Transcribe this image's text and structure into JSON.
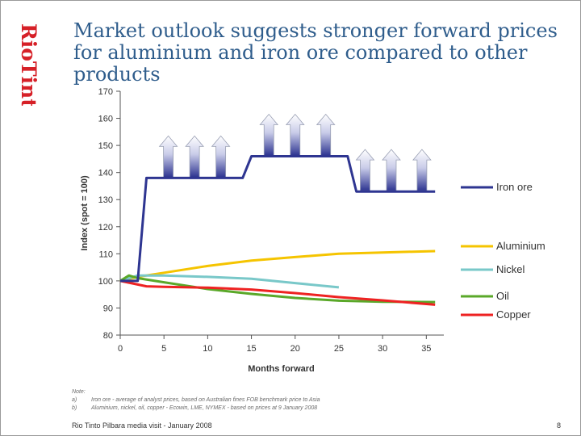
{
  "brand": {
    "logo_text": "RioTinto",
    "color": "#d62027"
  },
  "title": "Market outlook suggests stronger forward prices  for aluminium and iron ore compared to other products",
  "chart_data": {
    "type": "line",
    "xlabel": "Months forward",
    "ylabel": "Index (spot = 100)",
    "xlim": [
      0,
      37
    ],
    "ylim": [
      80,
      170
    ],
    "xticks": [
      0,
      5,
      10,
      15,
      20,
      25,
      30,
      35
    ],
    "yticks": [
      80,
      90,
      100,
      110,
      120,
      130,
      140,
      150,
      160,
      170
    ],
    "series": [
      {
        "name": "Iron ore",
        "color": "#2e3591",
        "points": [
          [
            0,
            100
          ],
          [
            2,
            100
          ],
          [
            3,
            138
          ],
          [
            7,
            138
          ],
          [
            14,
            138
          ],
          [
            15,
            146
          ],
          [
            21,
            146
          ],
          [
            26,
            146
          ],
          [
            27,
            133
          ],
          [
            36,
            133
          ]
        ]
      },
      {
        "name": "Aluminium",
        "color": "#f5c400",
        "points": [
          [
            0,
            100
          ],
          [
            2,
            101.5
          ],
          [
            5,
            103
          ],
          [
            10,
            105.5
          ],
          [
            15,
            107.5
          ],
          [
            20,
            108.8
          ],
          [
            25,
            110
          ],
          [
            30,
            110.5
          ],
          [
            36,
            111
          ]
        ]
      },
      {
        "name": "Nickel",
        "color": "#79c8c9",
        "points": [
          [
            0,
            100
          ],
          [
            2,
            102
          ],
          [
            5,
            102
          ],
          [
            10,
            101.5
          ],
          [
            15,
            100.8
          ],
          [
            20,
            99.2
          ],
          [
            25,
            97.6
          ]
        ]
      },
      {
        "name": "Oil",
        "color": "#5aa829",
        "points": [
          [
            0,
            100
          ],
          [
            1,
            102
          ],
          [
            2,
            101
          ],
          [
            5,
            99.5
          ],
          [
            10,
            97
          ],
          [
            15,
            95.2
          ],
          [
            20,
            93.7
          ],
          [
            25,
            92.7
          ],
          [
            30,
            92.3
          ],
          [
            36,
            92.2
          ]
        ]
      },
      {
        "name": "Copper",
        "color": "#ee2222",
        "points": [
          [
            0,
            100
          ],
          [
            3,
            98
          ],
          [
            5,
            97.8
          ],
          [
            10,
            97.5
          ],
          [
            15,
            96.8
          ],
          [
            20,
            95.5
          ],
          [
            25,
            94
          ],
          [
            30,
            92.8
          ],
          [
            36,
            91.2
          ]
        ]
      }
    ],
    "annotations": {
      "up_arrows_months": [
        5.5,
        8.5,
        11.5,
        17,
        20,
        23.5,
        28,
        31,
        34.5
      ],
      "up_arrows_base_index": [
        138,
        138,
        138,
        146,
        146,
        146,
        133,
        133,
        133
      ]
    }
  },
  "notes": {
    "heading": "Note:",
    "items": [
      {
        "key": "a)",
        "text": "Iron ore - average of analyst prices, based on Australian fines FOB benchmark price to Asia"
      },
      {
        "key": "b)",
        "text": "Aluminium, nickel, oil, copper -  Ecowin, LME, NYMEX - based on prices at 9 January 2008"
      }
    ]
  },
  "footer": {
    "text": "Rio Tinto Pilbara media visit - January 2008",
    "page": "8"
  }
}
